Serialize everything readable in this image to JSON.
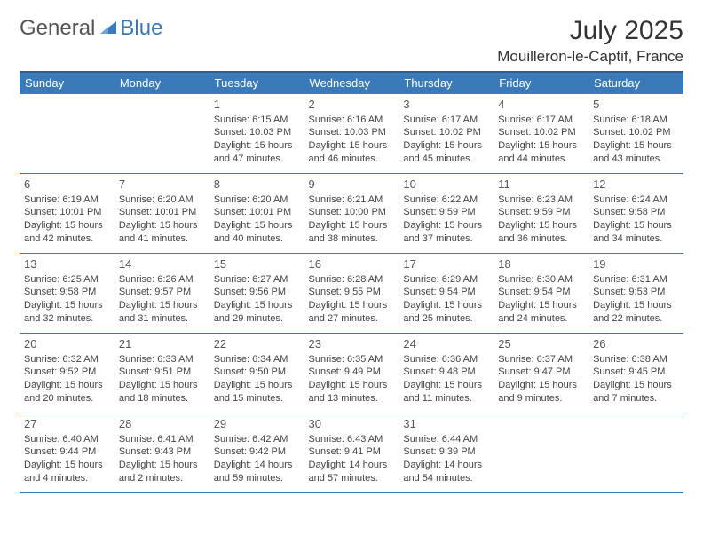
{
  "branding": {
    "word1": "General",
    "word2": "Blue",
    "color_general": "#555555",
    "color_blue": "#3a7ab8"
  },
  "header": {
    "title": "July 2025",
    "location": "Mouilleron-le-Captif, France"
  },
  "style": {
    "header_bg": "#3a7ab8",
    "header_fg": "#ffffff",
    "border_color": "#3a7ab8",
    "text_color": "#444444",
    "daynum_color": "#555555",
    "body_font_size": 11,
    "header_font_size": 13
  },
  "weekdays": [
    "Sunday",
    "Monday",
    "Tuesday",
    "Wednesday",
    "Thursday",
    "Friday",
    "Saturday"
  ],
  "weeks": [
    [
      null,
      null,
      {
        "n": "1",
        "sunrise": "Sunrise: 6:15 AM",
        "sunset": "Sunset: 10:03 PM",
        "day": "Daylight: 15 hours and 47 minutes."
      },
      {
        "n": "2",
        "sunrise": "Sunrise: 6:16 AM",
        "sunset": "Sunset: 10:03 PM",
        "day": "Daylight: 15 hours and 46 minutes."
      },
      {
        "n": "3",
        "sunrise": "Sunrise: 6:17 AM",
        "sunset": "Sunset: 10:02 PM",
        "day": "Daylight: 15 hours and 45 minutes."
      },
      {
        "n": "4",
        "sunrise": "Sunrise: 6:17 AM",
        "sunset": "Sunset: 10:02 PM",
        "day": "Daylight: 15 hours and 44 minutes."
      },
      {
        "n": "5",
        "sunrise": "Sunrise: 6:18 AM",
        "sunset": "Sunset: 10:02 PM",
        "day": "Daylight: 15 hours and 43 minutes."
      }
    ],
    [
      {
        "n": "6",
        "sunrise": "Sunrise: 6:19 AM",
        "sunset": "Sunset: 10:01 PM",
        "day": "Daylight: 15 hours and 42 minutes."
      },
      {
        "n": "7",
        "sunrise": "Sunrise: 6:20 AM",
        "sunset": "Sunset: 10:01 PM",
        "day": "Daylight: 15 hours and 41 minutes."
      },
      {
        "n": "8",
        "sunrise": "Sunrise: 6:20 AM",
        "sunset": "Sunset: 10:01 PM",
        "day": "Daylight: 15 hours and 40 minutes."
      },
      {
        "n": "9",
        "sunrise": "Sunrise: 6:21 AM",
        "sunset": "Sunset: 10:00 PM",
        "day": "Daylight: 15 hours and 38 minutes."
      },
      {
        "n": "10",
        "sunrise": "Sunrise: 6:22 AM",
        "sunset": "Sunset: 9:59 PM",
        "day": "Daylight: 15 hours and 37 minutes."
      },
      {
        "n": "11",
        "sunrise": "Sunrise: 6:23 AM",
        "sunset": "Sunset: 9:59 PM",
        "day": "Daylight: 15 hours and 36 minutes."
      },
      {
        "n": "12",
        "sunrise": "Sunrise: 6:24 AM",
        "sunset": "Sunset: 9:58 PM",
        "day": "Daylight: 15 hours and 34 minutes."
      }
    ],
    [
      {
        "n": "13",
        "sunrise": "Sunrise: 6:25 AM",
        "sunset": "Sunset: 9:58 PM",
        "day": "Daylight: 15 hours and 32 minutes."
      },
      {
        "n": "14",
        "sunrise": "Sunrise: 6:26 AM",
        "sunset": "Sunset: 9:57 PM",
        "day": "Daylight: 15 hours and 31 minutes."
      },
      {
        "n": "15",
        "sunrise": "Sunrise: 6:27 AM",
        "sunset": "Sunset: 9:56 PM",
        "day": "Daylight: 15 hours and 29 minutes."
      },
      {
        "n": "16",
        "sunrise": "Sunrise: 6:28 AM",
        "sunset": "Sunset: 9:55 PM",
        "day": "Daylight: 15 hours and 27 minutes."
      },
      {
        "n": "17",
        "sunrise": "Sunrise: 6:29 AM",
        "sunset": "Sunset: 9:54 PM",
        "day": "Daylight: 15 hours and 25 minutes."
      },
      {
        "n": "18",
        "sunrise": "Sunrise: 6:30 AM",
        "sunset": "Sunset: 9:54 PM",
        "day": "Daylight: 15 hours and 24 minutes."
      },
      {
        "n": "19",
        "sunrise": "Sunrise: 6:31 AM",
        "sunset": "Sunset: 9:53 PM",
        "day": "Daylight: 15 hours and 22 minutes."
      }
    ],
    [
      {
        "n": "20",
        "sunrise": "Sunrise: 6:32 AM",
        "sunset": "Sunset: 9:52 PM",
        "day": "Daylight: 15 hours and 20 minutes."
      },
      {
        "n": "21",
        "sunrise": "Sunrise: 6:33 AM",
        "sunset": "Sunset: 9:51 PM",
        "day": "Daylight: 15 hours and 18 minutes."
      },
      {
        "n": "22",
        "sunrise": "Sunrise: 6:34 AM",
        "sunset": "Sunset: 9:50 PM",
        "day": "Daylight: 15 hours and 15 minutes."
      },
      {
        "n": "23",
        "sunrise": "Sunrise: 6:35 AM",
        "sunset": "Sunset: 9:49 PM",
        "day": "Daylight: 15 hours and 13 minutes."
      },
      {
        "n": "24",
        "sunrise": "Sunrise: 6:36 AM",
        "sunset": "Sunset: 9:48 PM",
        "day": "Daylight: 15 hours and 11 minutes."
      },
      {
        "n": "25",
        "sunrise": "Sunrise: 6:37 AM",
        "sunset": "Sunset: 9:47 PM",
        "day": "Daylight: 15 hours and 9 minutes."
      },
      {
        "n": "26",
        "sunrise": "Sunrise: 6:38 AM",
        "sunset": "Sunset: 9:45 PM",
        "day": "Daylight: 15 hours and 7 minutes."
      }
    ],
    [
      {
        "n": "27",
        "sunrise": "Sunrise: 6:40 AM",
        "sunset": "Sunset: 9:44 PM",
        "day": "Daylight: 15 hours and 4 minutes."
      },
      {
        "n": "28",
        "sunrise": "Sunrise: 6:41 AM",
        "sunset": "Sunset: 9:43 PM",
        "day": "Daylight: 15 hours and 2 minutes."
      },
      {
        "n": "29",
        "sunrise": "Sunrise: 6:42 AM",
        "sunset": "Sunset: 9:42 PM",
        "day": "Daylight: 14 hours and 59 minutes."
      },
      {
        "n": "30",
        "sunrise": "Sunrise: 6:43 AM",
        "sunset": "Sunset: 9:41 PM",
        "day": "Daylight: 14 hours and 57 minutes."
      },
      {
        "n": "31",
        "sunrise": "Sunrise: 6:44 AM",
        "sunset": "Sunset: 9:39 PM",
        "day": "Daylight: 14 hours and 54 minutes."
      },
      null,
      null
    ]
  ]
}
